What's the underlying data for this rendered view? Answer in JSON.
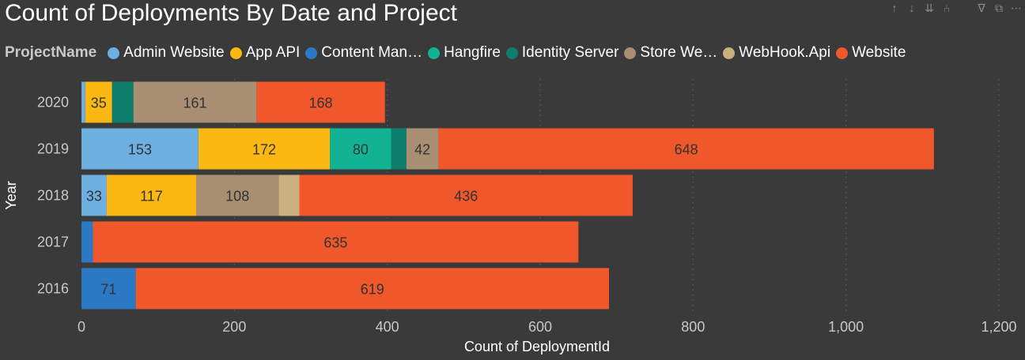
{
  "toolbar": {
    "icons": [
      {
        "name": "drill-up-icon",
        "glyph": "↑"
      },
      {
        "name": "drill-down-icon",
        "glyph": "↓"
      },
      {
        "name": "expand-all-icon",
        "glyph": "⇊"
      },
      {
        "name": "expand-hierarchy-icon",
        "glyph": "⑃"
      },
      {
        "name": "gap",
        "glyph": ""
      },
      {
        "name": "filter-icon",
        "glyph": "∇"
      },
      {
        "name": "focus-mode-icon",
        "glyph": "⧉"
      },
      {
        "name": "more-options-icon",
        "glyph": "⋯"
      }
    ]
  },
  "legend": {
    "title": "ProjectName",
    "items": [
      {
        "label": "Admin Website",
        "color": "#6cafe0"
      },
      {
        "label": "App API",
        "color": "#fbb813"
      },
      {
        "label": "Content Man…",
        "color": "#2b79c5"
      },
      {
        "label": "Hangfire",
        "color": "#12b294"
      },
      {
        "label": "Identity Server",
        "color": "#0d7e6b"
      },
      {
        "label": "Store We…",
        "color": "#a88e72"
      },
      {
        "label": "WebHook.Api",
        "color": "#c9b07e"
      },
      {
        "label": "Website",
        "color": "#f0572a"
      }
    ]
  },
  "chart_data": {
    "type": "bar",
    "orientation": "horizontal",
    "stacked": true,
    "title": "Count of Deployments By Date and Project",
    "xlabel": "Count of DeploymentId",
    "ylabel": "Year",
    "xlim": [
      0,
      1200
    ],
    "xticks": [
      0,
      200,
      400,
      600,
      800,
      1000,
      1200
    ],
    "xtick_labels": [
      "0",
      "200",
      "400",
      "600",
      "800",
      "1,000",
      "1,200"
    ],
    "grid": true,
    "legend_position": "top",
    "categories": [
      "2020",
      "2019",
      "2018",
      "2017",
      "2016"
    ],
    "series": [
      {
        "name": "Admin Website",
        "values": [
          5,
          153,
          33,
          0,
          0
        ],
        "labels": [
          "",
          "153",
          "33",
          "",
          ""
        ]
      },
      {
        "name": "App API",
        "values": [
          35,
          172,
          117,
          0,
          0
        ],
        "labels": [
          "35",
          "172",
          "117",
          "",
          ""
        ]
      },
      {
        "name": "Content Man…",
        "values": [
          0,
          0,
          0,
          15,
          71
        ],
        "labels": [
          "",
          "",
          "",
          "",
          "71"
        ]
      },
      {
        "name": "Hangfire",
        "values": [
          0,
          80,
          0,
          0,
          0
        ],
        "labels": [
          "",
          "80",
          "",
          "",
          ""
        ]
      },
      {
        "name": "Identity Server",
        "values": [
          28,
          20,
          0,
          0,
          0
        ],
        "labels": [
          "",
          "",
          "",
          "",
          ""
        ]
      },
      {
        "name": "Store We…",
        "values": [
          161,
          42,
          108,
          0,
          0
        ],
        "labels": [
          "161",
          "42",
          "108",
          "",
          ""
        ]
      },
      {
        "name": "WebHook.Api",
        "values": [
          0,
          0,
          27,
          0,
          0
        ],
        "labels": [
          "",
          "",
          "",
          "",
          ""
        ]
      },
      {
        "name": "Website",
        "values": [
          168,
          648,
          436,
          635,
          619
        ],
        "labels": [
          "168",
          "648",
          "436",
          "635",
          "619"
        ]
      }
    ]
  }
}
